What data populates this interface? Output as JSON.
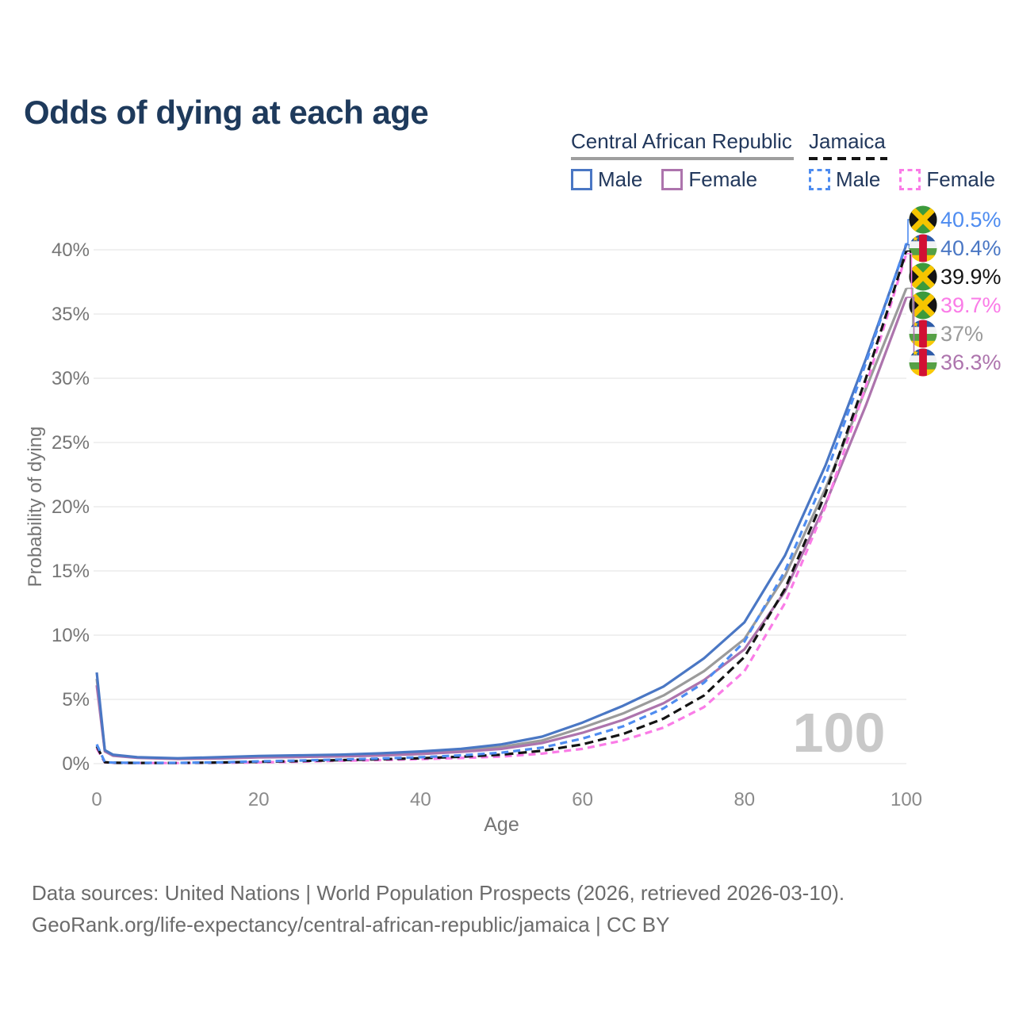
{
  "title": "Odds of dying at each age",
  "legend": {
    "groups": [
      {
        "name": "Central African Republic",
        "line_style": "solid",
        "underline_color": "#9e9e9e",
        "items": [
          {
            "label": "Male",
            "color": "#4a77c4",
            "dashed": false
          },
          {
            "label": "Female",
            "color": "#ad74ad",
            "dashed": false
          }
        ]
      },
      {
        "name": "Jamaica",
        "line_style": "dashed",
        "underline_color": "#141414",
        "items": [
          {
            "label": "Male",
            "color": "#4e8cf0",
            "dashed": true
          },
          {
            "label": "Female",
            "color": "#fa7ce7",
            "dashed": true
          }
        ]
      }
    ]
  },
  "chart_data": {
    "type": "line",
    "title": "Odds of dying at each age",
    "xlabel": "Age",
    "ylabel": "Probability of dying",
    "xlim": [
      0,
      100
    ],
    "ylim": [
      0,
      42
    ],
    "xticks": [
      0,
      20,
      40,
      60,
      80,
      100
    ],
    "yticks": [
      0,
      5,
      10,
      15,
      20,
      25,
      30,
      35,
      40
    ],
    "ytick_suffix": "%",
    "grid": "horizontal",
    "watermark": "100",
    "x": [
      0,
      1,
      2,
      5,
      10,
      15,
      20,
      25,
      30,
      35,
      40,
      45,
      50,
      55,
      60,
      65,
      70,
      75,
      80,
      85,
      90,
      95,
      100
    ],
    "series": [
      {
        "name": "Central African Republic Both",
        "country": "Central African Republic",
        "sex": "both",
        "color": "#9b9b9b",
        "dash": "none",
        "values": [
          6.6,
          1.0,
          0.66,
          0.47,
          0.39,
          0.45,
          0.54,
          0.58,
          0.63,
          0.72,
          0.85,
          1.03,
          1.3,
          1.8,
          2.8,
          3.9,
          5.3,
          7.2,
          9.7,
          14.6,
          21.4,
          29.2,
          37.0
        ]
      },
      {
        "name": "Central African Republic Female",
        "country": "Central African Republic",
        "sex": "female",
        "color": "#ad74ad",
        "dash": "none",
        "values": [
          6.1,
          0.95,
          0.62,
          0.45,
          0.36,
          0.4,
          0.48,
          0.52,
          0.56,
          0.63,
          0.75,
          0.92,
          1.15,
          1.6,
          2.4,
          3.4,
          4.7,
          6.5,
          8.9,
          13.4,
          20.2,
          27.9,
          36.3
        ]
      },
      {
        "name": "Central African Republic Male",
        "country": "Central African Republic",
        "sex": "male",
        "color": "#4a77c4",
        "dash": "none",
        "values": [
          7.1,
          1.05,
          0.7,
          0.5,
          0.42,
          0.5,
          0.6,
          0.65,
          0.7,
          0.8,
          0.95,
          1.15,
          1.5,
          2.1,
          3.2,
          4.5,
          6.0,
          8.2,
          11.0,
          16.2,
          23.2,
          31.5,
          40.4
        ]
      },
      {
        "name": "Jamaica Female",
        "country": "Jamaica",
        "sex": "female",
        "color": "#fa7ce7",
        "dash": "9 6",
        "values": [
          1.2,
          0.1,
          0.06,
          0.05,
          0.05,
          0.07,
          0.1,
          0.15,
          0.22,
          0.28,
          0.35,
          0.44,
          0.55,
          0.78,
          1.15,
          1.8,
          2.8,
          4.4,
          7.2,
          12.5,
          20.0,
          29.4,
          39.7
        ]
      },
      {
        "name": "Jamaica Both",
        "country": "Jamaica",
        "sex": "both",
        "color": "#141414",
        "dash": "11 6",
        "values": [
          1.35,
          0.11,
          0.07,
          0.055,
          0.055,
          0.085,
          0.14,
          0.2,
          0.27,
          0.34,
          0.42,
          0.54,
          0.7,
          1.0,
          1.5,
          2.3,
          3.5,
          5.3,
          8.3,
          13.6,
          21.0,
          30.0,
          39.9
        ]
      },
      {
        "name": "Jamaica Male",
        "country": "Jamaica",
        "sex": "male",
        "color": "#4e8cf0",
        "dash": "9 6",
        "values": [
          1.5,
          0.12,
          0.08,
          0.06,
          0.06,
          0.1,
          0.18,
          0.24,
          0.32,
          0.4,
          0.5,
          0.65,
          0.85,
          1.25,
          1.95,
          2.9,
          4.3,
          6.3,
          9.5,
          15.0,
          22.4,
          31.2,
          40.5
        ]
      }
    ],
    "end_labels": [
      {
        "text": "40.5%",
        "value": 40.5,
        "color": "#4e8cf0",
        "flag": "jamaica",
        "series": "Jamaica Male"
      },
      {
        "text": "40.4%",
        "value": 40.4,
        "color": "#4a77c4",
        "flag": "car",
        "series": "Central African Republic Male"
      },
      {
        "text": "39.9%",
        "value": 39.9,
        "color": "#141414",
        "flag": "jamaica",
        "series": "Jamaica Both"
      },
      {
        "text": "39.7%",
        "value": 39.7,
        "color": "#fa7ce7",
        "flag": "jamaica",
        "series": "Jamaica Female"
      },
      {
        "text": "37%",
        "value": 37.0,
        "color": "#9b9b9b",
        "flag": "car",
        "series": "Central African Republic Both"
      },
      {
        "text": "36.3%",
        "value": 36.3,
        "color": "#ad74ad",
        "flag": "car",
        "series": "Central African Republic Female"
      }
    ],
    "flag_colors": {
      "jamaica": {
        "green": "#3c9a3c",
        "gold": "#f6c500",
        "black": "#141414"
      },
      "car": {
        "blue": "#2d5ba8",
        "white": "#f1f3f4",
        "green": "#55a046",
        "yellow": "#f7c908",
        "red": "#d21034",
        "star": "#f7c908"
      }
    }
  },
  "footer": {
    "line1": "Data sources: United Nations | World Population Prospects (2026, retrieved 2026-03-10).",
    "line2": "GeoRank.org/life-expectancy/central-african-republic/jamaica | CC BY"
  }
}
